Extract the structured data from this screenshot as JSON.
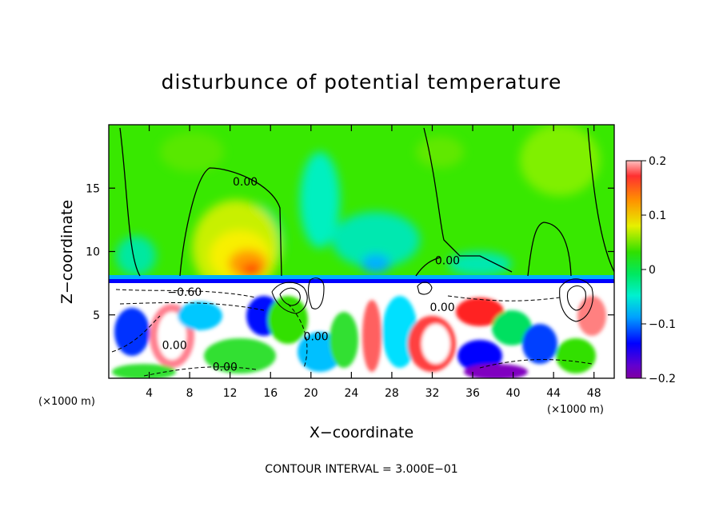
{
  "chart_data": {
    "type": "heatmap",
    "title": "disturbunce of potential temperature",
    "xlabel": "X−coordinate",
    "ylabel": "Z−coordinate",
    "x_unit_left": "(×1000 m)",
    "x_unit_right": "(×1000 m)",
    "footnote": "CONTOUR INTERVAL = 3.000E−01",
    "xlim": [
      0,
      50
    ],
    "ylim": [
      0,
      20
    ],
    "xticks": [
      4,
      8,
      12,
      16,
      20,
      24,
      28,
      32,
      36,
      40,
      44,
      48
    ],
    "yticks": [
      5,
      10,
      15
    ],
    "colorbar": {
      "range": [
        -0.2,
        0.2
      ],
      "tick_values": [
        0.2,
        0.1,
        0,
        -0.1,
        -0.2
      ],
      "tick_labels": [
        "0.2",
        "0.1",
        "0",
        "−0.1",
        "−0.2"
      ]
    },
    "contour_labels": [
      {
        "text": "0.00",
        "x": 13.5,
        "z": 15.2
      },
      {
        "text": "−0.60",
        "x": 7.5,
        "z": 6.5
      },
      {
        "text": "0.00",
        "x": 6.5,
        "z": 2.3
      },
      {
        "text": "0.00",
        "x": 11.5,
        "z": 0.6
      },
      {
        "text": "0.00",
        "x": 20.5,
        "z": 3.0
      },
      {
        "text": "0.00",
        "x": 33.5,
        "z": 9.0
      },
      {
        "text": "0.00",
        "x": 33.0,
        "z": 5.3
      }
    ]
  },
  "colors": {
    "background": "#00e800",
    "warm_peak": "#e80000",
    "cold_layer": "#0000ff",
    "frame": "#000000"
  }
}
